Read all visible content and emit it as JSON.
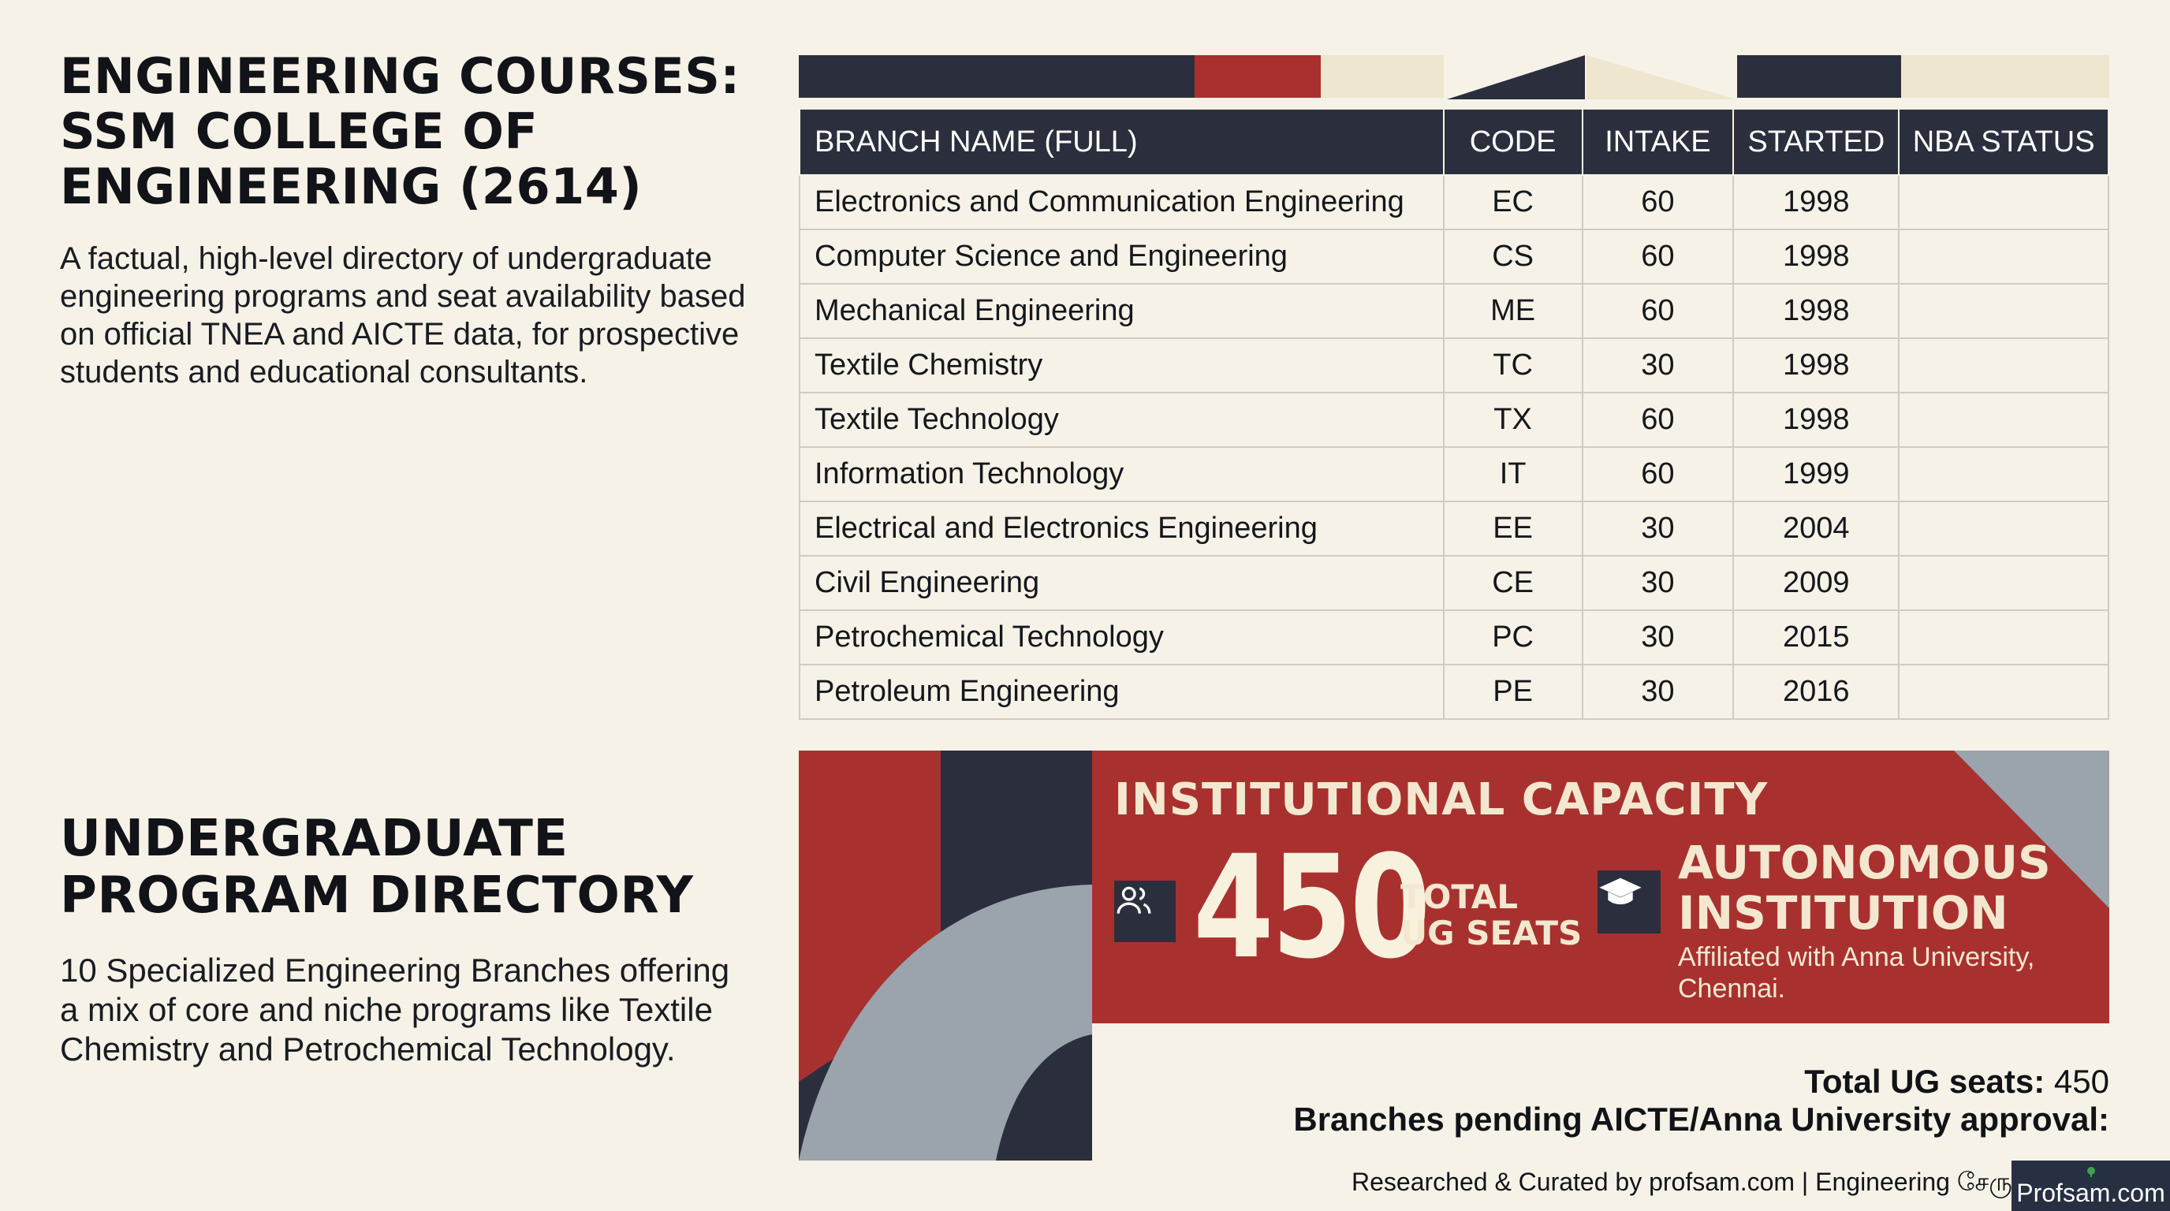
{
  "left": {
    "title_lines": [
      "ENGINEERING COURSES:",
      "SSM COLLEGE OF",
      "ENGINEERING (2614)"
    ],
    "description": "A factual, high-level directory of undergraduate engineering programs and seat availability based on official TNEA and AICTE data, for prospective students and educational consultants."
  },
  "directory": {
    "title_lines": [
      "UNDERGRADUATE",
      "PROGRAM DIRECTORY"
    ],
    "description": "10 Specialized Engineering Branches offering a mix of core and niche programs like Textile Chemistry and Petrochemical Technology."
  },
  "table": {
    "headers": [
      "BRANCH NAME (FULL)",
      "CODE",
      "INTAKE",
      "STARTED",
      "NBA STATUS"
    ],
    "rows": [
      [
        "Electronics and Communication Engineering",
        "EC",
        "60",
        "1998",
        ""
      ],
      [
        "Computer Science and Engineering",
        "CS",
        "60",
        "1998",
        ""
      ],
      [
        "Mechanical Engineering",
        "ME",
        "60",
        "1998",
        ""
      ],
      [
        "Textile Chemistry",
        "TC",
        "30",
        "1998",
        ""
      ],
      [
        "Textile Technology",
        "TX",
        "60",
        "1998",
        ""
      ],
      [
        "Information Technology",
        "IT",
        "60",
        "1999",
        ""
      ],
      [
        "Electrical and Electronics Engineering",
        "EE",
        "30",
        "2004",
        ""
      ],
      [
        "Civil Engineering",
        "CE",
        "30",
        "2009",
        ""
      ],
      [
        "Petrochemical Technology",
        "PC",
        "30",
        "2015",
        ""
      ],
      [
        "Petroleum Engineering",
        "PE",
        "30",
        "2016",
        ""
      ]
    ]
  },
  "capacity": {
    "title": "INSTITUTIONAL CAPACITY",
    "seats_value": "450",
    "seats_label_1": "TOTAL",
    "seats_label_2": "UG SEATS",
    "people_icon": "people-icon",
    "cap_icon": "graduation-cap-icon",
    "autonomous_1": "AUTONOMOUS",
    "autonomous_2": "INSTITUTION",
    "affiliation": "Affiliated with Anna University, Chennai."
  },
  "summary": {
    "total_label": "Total UG seats:",
    "total_value": "450",
    "pending_label": "Branches pending AICTE/Anna University approval:"
  },
  "footer": {
    "credit": "Researched & Curated by profsam.com | Engineering சேருங்க",
    "logo_text": "Profsam.com"
  },
  "colors": {
    "navy": "#2b2f3d",
    "red": "#a8312f",
    "cream": "#efe6cf",
    "background": "#f6f2e7",
    "grey": "#9ba3ac"
  }
}
